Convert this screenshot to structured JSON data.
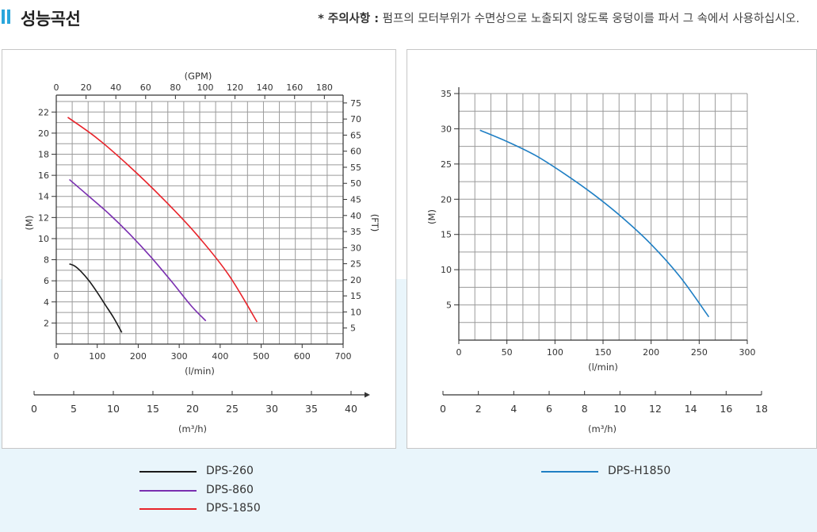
{
  "header": {
    "title": "성능곡선",
    "notice_label": "* 주의사항 :",
    "notice_text": " 펌프의 모터부위가 수면상으로 노출되지 않도록 웅덩이를 파서 그 속에서 사용하십시오."
  },
  "colors": {
    "accent": "#2aa6dc",
    "band": "#e9f5fb",
    "DPS-260": "#1a1a1a",
    "DPS-860": "#7a2fb0",
    "DPS-1850": "#e8232a",
    "DPS-H1850": "#1f7fc4"
  },
  "chart_data": [
    {
      "type": "line",
      "x_label": "(l/min)",
      "x_ticks": [
        0,
        100,
        200,
        300,
        400,
        500,
        600,
        700
      ],
      "xlim": [
        0,
        700
      ],
      "y_label": "(M)",
      "y_ticks": [
        2,
        4,
        6,
        8,
        10,
        12,
        14,
        16,
        18,
        20,
        22
      ],
      "ylim": [
        0,
        23
      ],
      "secondary_x": {
        "label": "(GPM)",
        "ticks": [
          0,
          20,
          40,
          60,
          80,
          100,
          120,
          140,
          160,
          180
        ]
      },
      "secondary_y": {
        "label": "(FT)",
        "ticks": [
          5,
          10,
          15,
          20,
          25,
          30,
          35,
          40,
          45,
          50,
          55,
          60,
          65,
          70,
          75
        ]
      },
      "flow_axis": {
        "label": "(m³/h)",
        "ticks": [
          0,
          5,
          10,
          15,
          20,
          25,
          30,
          35,
          40
        ],
        "max": 42
      },
      "grid": true,
      "series": [
        {
          "name": "DPS-260",
          "color": "#1a1a1a",
          "x": [
            32,
            45,
            60,
            80,
            100,
            120,
            140,
            160
          ],
          "y": [
            7.6,
            7.4,
            6.9,
            6.0,
            4.9,
            3.7,
            2.5,
            1.1
          ]
        },
        {
          "name": "DPS-860",
          "color": "#7a2fb0",
          "x": [
            32,
            80,
            130,
            180,
            230,
            280,
            330,
            365
          ],
          "y": [
            15.6,
            14.0,
            12.3,
            10.4,
            8.3,
            6.0,
            3.6,
            2.2
          ]
        },
        {
          "name": "DPS-1850",
          "color": "#e8232a",
          "x": [
            28,
            100,
            180,
            260,
            340,
            420,
            490
          ],
          "y": [
            21.5,
            19.5,
            16.8,
            13.8,
            10.5,
            6.6,
            2.1
          ]
        }
      ]
    },
    {
      "type": "line",
      "x_label": "(l/min)",
      "x_ticks": [
        0,
        50,
        100,
        150,
        200,
        250,
        300
      ],
      "xlim": [
        0,
        300
      ],
      "y_label": "(M)",
      "y_ticks": [
        5,
        10,
        15,
        20,
        25,
        30,
        35
      ],
      "ylim": [
        0,
        35
      ],
      "flow_axis": {
        "label": "(m³/h)",
        "ticks": [
          0,
          2,
          4,
          6,
          8,
          10,
          12,
          14,
          16,
          18
        ],
        "max": 18
      },
      "grid": true,
      "series": [
        {
          "name": "DPS-H1850",
          "color": "#1f7fc4",
          "x": [
            22,
            50,
            80,
            110,
            140,
            170,
            200,
            230,
            260
          ],
          "y": [
            29.8,
            28.2,
            26.2,
            23.6,
            20.7,
            17.4,
            13.6,
            9.0,
            3.3
          ]
        }
      ]
    }
  ],
  "legend_left": [
    {
      "label": "DPS-260",
      "color": "#1a1a1a"
    },
    {
      "label": "DPS-860",
      "color": "#7a2fb0"
    },
    {
      "label": "DPS-1850",
      "color": "#e8232a"
    }
  ],
  "legend_right": [
    {
      "label": "DPS-H1850",
      "color": "#1f7fc4"
    }
  ]
}
